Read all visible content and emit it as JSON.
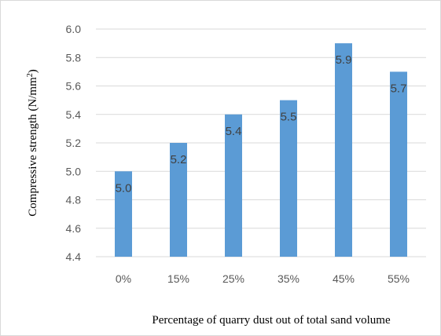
{
  "chart_data": {
    "type": "bar",
    "categories": [
      "0%",
      "15%",
      "25%",
      "35%",
      "45%",
      "55%"
    ],
    "values": [
      5.0,
      5.2,
      5.4,
      5.5,
      5.9,
      5.7
    ],
    "data_labels": [
      "5.0",
      "5.2",
      "5.4",
      "5.5",
      "5.9",
      "5.7"
    ],
    "yticks": [
      "4.4",
      "4.6",
      "4.8",
      "5.0",
      "5.2",
      "5.4",
      "5.6",
      "5.8",
      "6.0"
    ],
    "ylim": [
      4.4,
      6.0
    ],
    "xlabel": "Percentage of quarry dust out of total sand volume",
    "ylabel": "Compressive strength (N/mm",
    "ylabel_superscript": "2",
    "ylabel_suffix": ")",
    "grid": true,
    "legend": "none",
    "bar_color": "#5B9BD5"
  }
}
